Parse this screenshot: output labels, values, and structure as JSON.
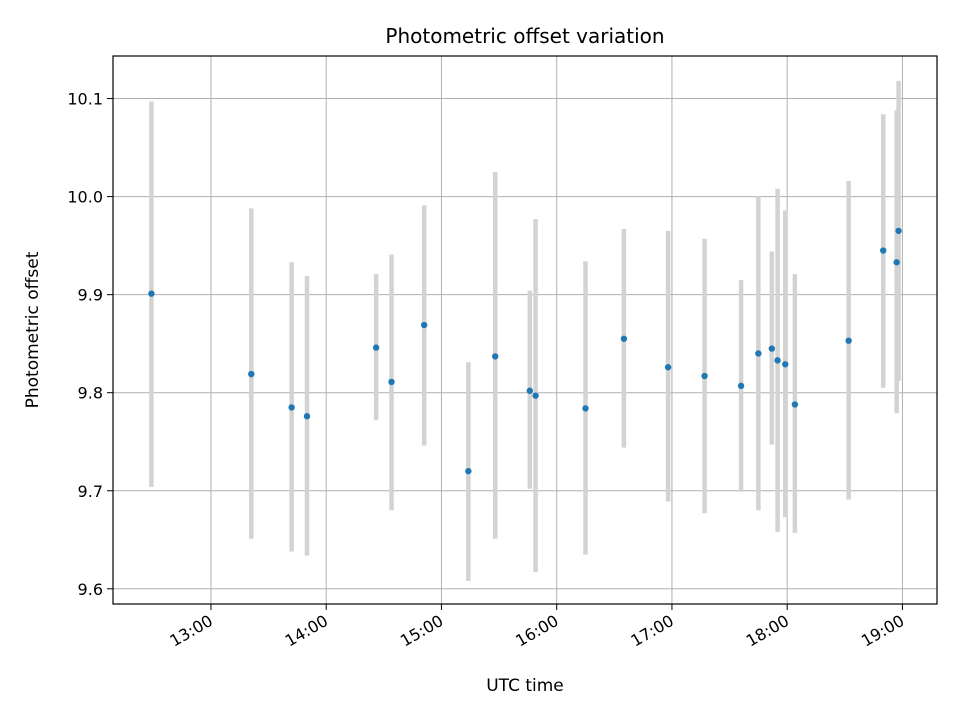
{
  "chart_data": {
    "type": "scatter",
    "title": "Photometric offset variation",
    "xlabel": "UTC time",
    "ylabel": "Photometric offset",
    "x_tick_labels": [
      "13:00",
      "14:00",
      "15:00",
      "16:00",
      "17:00",
      "18:00",
      "19:00"
    ],
    "y_tick_labels": [
      "9.6",
      "9.7",
      "9.8",
      "9.9",
      "10.0",
      "10.1"
    ],
    "y_ticks": [
      9.6,
      9.7,
      9.8,
      9.9,
      10.0,
      10.1
    ],
    "xlim": [
      "12:09",
      "19:18"
    ],
    "ylim": [
      9.5845,
      10.1434
    ],
    "grid": true,
    "marker_color": "#1f77b4",
    "errorbar_color": "#d3d3d3",
    "series": [
      {
        "points": [
          {
            "x": "12:29",
            "y": 9.901,
            "ymin": 9.704,
            "ymax": 10.097
          },
          {
            "x": "13:21",
            "y": 9.819,
            "ymin": 9.651,
            "ymax": 9.988
          },
          {
            "x": "13:42",
            "y": 9.785,
            "ymin": 9.638,
            "ymax": 9.933
          },
          {
            "x": "13:50",
            "y": 9.776,
            "ymin": 9.634,
            "ymax": 9.919
          },
          {
            "x": "14:26",
            "y": 9.846,
            "ymin": 9.772,
            "ymax": 9.921
          },
          {
            "x": "14:34",
            "y": 9.811,
            "ymin": 9.68,
            "ymax": 9.941
          },
          {
            "x": "14:51",
            "y": 9.869,
            "ymin": 9.746,
            "ymax": 9.991
          },
          {
            "x": "15:14",
            "y": 9.72,
            "ymin": 9.608,
            "ymax": 9.831
          },
          {
            "x": "15:28",
            "y": 9.837,
            "ymin": 9.651,
            "ymax": 10.025
          },
          {
            "x": "15:46",
            "y": 9.802,
            "ymin": 9.702,
            "ymax": 9.904
          },
          {
            "x": "15:49",
            "y": 9.797,
            "ymin": 9.617,
            "ymax": 9.977
          },
          {
            "x": "16:15",
            "y": 9.784,
            "ymin": 9.635,
            "ymax": 9.934
          },
          {
            "x": "16:35",
            "y": 9.855,
            "ymin": 9.744,
            "ymax": 9.967
          },
          {
            "x": "16:58",
            "y": 9.826,
            "ymin": 9.689,
            "ymax": 9.965
          },
          {
            "x": "17:17",
            "y": 9.817,
            "ymin": 9.677,
            "ymax": 9.957
          },
          {
            "x": "17:36",
            "y": 9.807,
            "ymin": 9.699,
            "ymax": 9.915
          },
          {
            "x": "17:45",
            "y": 9.84,
            "ymin": 9.68,
            "ymax": 10.0
          },
          {
            "x": "17:52",
            "y": 9.845,
            "ymin": 9.747,
            "ymax": 9.944
          },
          {
            "x": "17:55",
            "y": 9.833,
            "ymin": 9.658,
            "ymax": 10.008
          },
          {
            "x": "17:59",
            "y": 9.829,
            "ymin": 9.673,
            "ymax": 9.986
          },
          {
            "x": "18:04",
            "y": 9.788,
            "ymin": 9.657,
            "ymax": 9.921
          },
          {
            "x": "18:32",
            "y": 9.853,
            "ymin": 9.691,
            "ymax": 10.016
          },
          {
            "x": "18:50",
            "y": 9.945,
            "ymin": 9.805,
            "ymax": 10.084
          },
          {
            "x": "18:57",
            "y": 9.933,
            "ymin": 9.779,
            "ymax": 10.088
          },
          {
            "x": "18:58",
            "y": 9.965,
            "ymin": 9.812,
            "ymax": 10.118
          }
        ]
      }
    ]
  }
}
